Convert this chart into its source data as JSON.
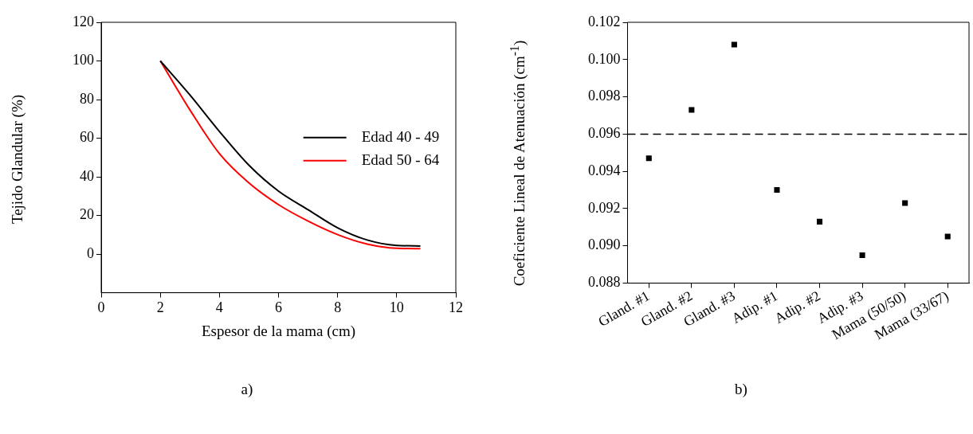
{
  "chart_data": [
    {
      "type": "line",
      "xlabel": "Espesor de la mama (cm)",
      "ylabel": "Tejido Glandular (%)",
      "xlim": [
        0,
        12
      ],
      "xticks": [
        0,
        2,
        4,
        6,
        8,
        10,
        12
      ],
      "ylim": [
        -20,
        120
      ],
      "yticks": [
        0,
        20,
        40,
        60,
        80,
        100,
        120
      ],
      "grid": false,
      "legend": "right",
      "marker": "none",
      "line_style": "solid",
      "annotations": [
        "a)"
      ],
      "series": [
        {
          "name": "Edad 40 - 49",
          "color": "#000000",
          "x": [
            2,
            3,
            4,
            5,
            6,
            7,
            8,
            9,
            10,
            10.8
          ],
          "values": [
            100,
            82.4,
            63.5,
            46,
            32.6,
            23,
            13.6,
            7.3,
            4.5,
            4.2
          ]
        },
        {
          "name": "Edad 50 - 64",
          "color": "#ff0000",
          "x": [
            2,
            3,
            4,
            5,
            6,
            7,
            8,
            9,
            10,
            10.8
          ],
          "values": [
            100,
            74.7,
            52,
            36.8,
            25.6,
            17.1,
            10.1,
            5.2,
            3,
            2.8
          ]
        }
      ]
    },
    {
      "type": "scatter",
      "ylabel": "Coeficiente Lineal de Atenuación (cm$^{-1}$)",
      "categories": [
        "Gland. #1",
        "Gland. #2",
        "Gland. #3",
        "Adip. #1",
        "Adip. #2",
        "Adip. #3",
        "Mama (50/50)",
        "Mama (33/67)"
      ],
      "ylim": [
        0.088,
        0.102
      ],
      "yticks": [
        {
          "value": 0.088,
          "label": "0.088"
        },
        {
          "value": 0.09,
          "label": "0.090"
        },
        {
          "value": 0.092,
          "label": "0.092"
        },
        {
          "value": 0.094,
          "label": "0.094"
        },
        {
          "value": 0.096,
          "label": "0.096"
        },
        {
          "value": 0.098,
          "label": "0.098"
        },
        {
          "value": 0.1,
          "label": "0.100"
        },
        {
          "value": 0.102,
          "label": "0.102"
        }
      ],
      "grid": false,
      "legend": false,
      "marker": "square",
      "annotations": [
        "b)"
      ],
      "series": [
        {
          "color": "#000000",
          "values": [
            0.0947,
            0.0973,
            0.1008,
            0.093,
            0.0913,
            0.0895,
            0.0923,
            0.0905
          ]
        }
      ],
      "ref_lines": [
        {
          "axis": "y",
          "value": 0.096,
          "color": "#000000",
          "line_style": "dashed"
        }
      ]
    }
  ]
}
